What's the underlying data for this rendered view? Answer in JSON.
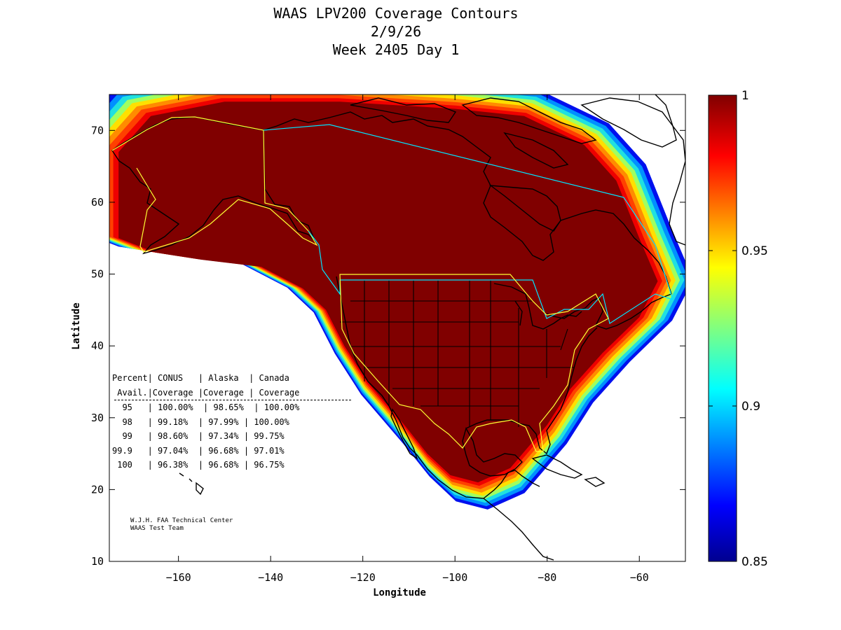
{
  "title": {
    "line1": "WAAS LPV200 Coverage Contours",
    "line2": "2/9/26",
    "line3": "Week 2405 Day 1"
  },
  "axes": {
    "xlabel": "Longitude",
    "ylabel": "Latitude",
    "xlim": [
      -175,
      -50
    ],
    "ylim": [
      10,
      75
    ],
    "xticks": [
      -160,
      -140,
      -120,
      -100,
      -80,
      -60
    ],
    "yticks": [
      10,
      20,
      30,
      40,
      50,
      60,
      70
    ]
  },
  "colorbar": {
    "range": [
      0.85,
      1
    ],
    "ticks": [
      "1",
      "0.95",
      "0.9",
      "0.85"
    ],
    "colormap": "jet"
  },
  "table": {
    "header1": "Percent| CONUS   | Alaska  | Canada",
    "header2": " Avail.|Coverage |Coverage | Coverage",
    "rows": [
      "  95   | 100.00%  | 98.65%  | 100.00%",
      "  98   | 99.18%  | 97.99% | 100.00%",
      "  99   | 98.60%  | 97.34% | 99.75%",
      "99.9   | 97.04%  | 96.68% | 97.01%",
      " 100   | 96.38%  | 96.68% | 96.75%"
    ]
  },
  "credit": {
    "line1": "W.J.H. FAA Technical Center",
    "line2": "WAAS Test Team"
  },
  "colors": {
    "core": "#800000",
    "cyan_boundary": "#00e5ff",
    "yellow_boundary": "#ffff33"
  },
  "chart_data": {
    "type": "heatmap",
    "title": "WAAS LPV200 Coverage Contours",
    "xlabel": "Longitude",
    "ylabel": "Latitude",
    "xlim": [
      -175,
      -50
    ],
    "ylim": [
      10,
      75
    ],
    "value_range": [
      0.85,
      1
    ],
    "core_region": {
      "value": 1,
      "outline_lonlat": [
        [
          -173,
          67
        ],
        [
          -166,
          72
        ],
        [
          -150,
          74
        ],
        [
          -125,
          74
        ],
        [
          -100,
          73
        ],
        [
          -85,
          72
        ],
        [
          -72,
          68
        ],
        [
          -65,
          63
        ],
        [
          -60,
          55
        ],
        [
          -56,
          49
        ],
        [
          -60,
          44
        ],
        [
          -68,
          39
        ],
        [
          -75,
          34
        ],
        [
          -80,
          29
        ],
        [
          -84,
          26
        ],
        [
          -88,
          23
        ],
        [
          -95,
          21
        ],
        [
          -101,
          22
        ],
        [
          -106,
          25
        ],
        [
          -111,
          29
        ],
        [
          -115,
          32
        ],
        [
          -119,
          35
        ],
        [
          -124,
          40
        ],
        [
          -128,
          45
        ],
        [
          -133,
          48
        ],
        [
          -142,
          51
        ],
        [
          -155,
          52
        ],
        [
          -165,
          53
        ],
        [
          -173,
          55
        ]
      ]
    },
    "coverage_bands": [
      {
        "value": 0.99,
        "color": "#ee0000"
      },
      {
        "value": 0.975,
        "color": "#ff4000"
      },
      {
        "value": 0.96,
        "color": "#ff8c00"
      },
      {
        "value": 0.945,
        "color": "#ffe000"
      },
      {
        "value": 0.93,
        "color": "#a0ff60"
      },
      {
        "value": 0.91,
        "color": "#20e0e0"
      },
      {
        "value": 0.89,
        "color": "#0090ff"
      },
      {
        "value": 0.87,
        "color": "#0010ee"
      }
    ],
    "table_rows": [
      {
        "percent": "95",
        "conus": "100.00%",
        "alaska": "98.65%",
        "canada": "100.00%"
      },
      {
        "percent": "98",
        "conus": "99.18%",
        "alaska": "97.99%",
        "canada": "100.00%"
      },
      {
        "percent": "99",
        "conus": "98.60%",
        "alaska": "97.34%",
        "canada": "99.75%"
      },
      {
        "percent": "99.9",
        "conus": "97.04%",
        "alaska": "96.68%",
        "canada": "97.01%"
      },
      {
        "percent": "100",
        "conus": "96.38%",
        "alaska": "96.68%",
        "canada": "96.75%"
      }
    ]
  }
}
